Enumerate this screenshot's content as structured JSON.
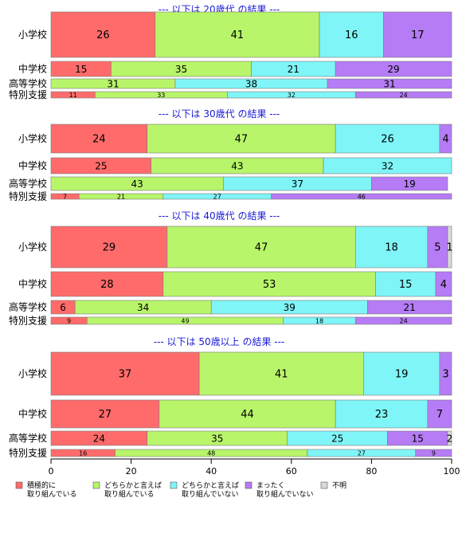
{
  "chart_data": {
    "type": "bar",
    "orientation": "horizontal",
    "stacked": true,
    "xlim": [
      0,
      100
    ],
    "x_ticks": [
      "0",
      "20",
      "40",
      "60",
      "80",
      "100"
    ],
    "column_headers": [
      "積極的に取り組んで..",
      "どちらかと言えば取り組んでいる",
      "どちらかと..",
      "まったく取り",
      "不明"
    ],
    "legend": {
      "placement": "bottom",
      "items": [
        {
          "lines": [
            "積極的に",
            "取り組んでいる"
          ],
          "color": "#ff6b6b"
        },
        {
          "lines": [
            "どちらかと言えば",
            "取り組んでいる"
          ],
          "color": "#b8f56a"
        },
        {
          "lines": [
            "どちらかと言えば",
            "取り組んでいない"
          ],
          "color": "#7ff5f7"
        },
        {
          "lines": [
            "まったく",
            "取り組んでいない"
          ],
          "color": "#b57cf5"
        },
        {
          "lines": [
            "不明"
          ],
          "color": "#d8d8d8"
        }
      ]
    },
    "groups": [
      {
        "title": "--- 以下は 20歳代 の結果 ---",
        "rows": [
          {
            "label": "小学校",
            "values": [
              26,
              41,
              16,
              17,
              0
            ],
            "labels": [
              "26",
              "41",
              "16",
              "17",
              ""
            ]
          },
          {
            "label": "中学校",
            "values": [
              15,
              35,
              21,
              29,
              0
            ],
            "labels": [
              "15",
              "35",
              "21",
              "29",
              ""
            ]
          },
          {
            "label": "高等学校",
            "values": [
              0,
              31,
              38,
              31,
              0
            ],
            "labels": [
              "",
              "31",
              "38",
              "31",
              ""
            ]
          },
          {
            "label": "特別支援",
            "values": [
              11,
              33,
              32,
              24,
              0
            ],
            "labels": [
              "11",
              "33",
              "32",
              "24",
              ""
            ]
          }
        ]
      },
      {
        "title": "--- 以下は 30歳代 の結果 ---",
        "rows": [
          {
            "label": "小学校",
            "values": [
              24,
              47,
              26,
              4,
              0
            ],
            "labels": [
              "24",
              "47",
              "26",
              "4",
              ""
            ]
          },
          {
            "label": "中学校",
            "values": [
              25,
              43,
              32,
              0,
              0
            ],
            "labels": [
              "25",
              "43",
              "32",
              "",
              ""
            ]
          },
          {
            "label": "高等学校",
            "values": [
              0,
              43,
              37,
              19,
              0
            ],
            "labels": [
              "",
              "43",
              "37",
              "19",
              ""
            ]
          },
          {
            "label": "特別支援",
            "values": [
              7,
              21,
              27,
              46,
              0
            ],
            "labels": [
              "7",
              "21",
              "27",
              "46",
              ""
            ]
          }
        ]
      },
      {
        "title": "--- 以下は 40歳代 の結果 ---",
        "rows": [
          {
            "label": "小学校",
            "values": [
              29,
              47,
              18,
              5,
              1
            ],
            "labels": [
              "29",
              "47",
              "18",
              "5",
              "1"
            ]
          },
          {
            "label": "中学校",
            "values": [
              28,
              53,
              15,
              4,
              0
            ],
            "labels": [
              "28",
              "53",
              "15",
              "4",
              ""
            ]
          },
          {
            "label": "高等学校",
            "values": [
              6,
              34,
              39,
              21,
              0
            ],
            "labels": [
              "6",
              "34",
              "39",
              "21",
              ""
            ]
          },
          {
            "label": "特別支援",
            "values": [
              9,
              49,
              18,
              24,
              0
            ],
            "labels": [
              "9",
              "49",
              "18",
              "24",
              ""
            ]
          }
        ]
      },
      {
        "title": "--- 以下は 50歳以上 の結果 ---",
        "rows": [
          {
            "label": "小学校",
            "values": [
              37,
              41,
              19,
              3,
              0
            ],
            "labels": [
              "37",
              "41",
              "19",
              "3",
              ""
            ]
          },
          {
            "label": "中学校",
            "values": [
              27,
              44,
              23,
              7,
              0
            ],
            "labels": [
              "27",
              "44",
              "23",
              "7",
              ""
            ]
          },
          {
            "label": "高等学校",
            "values": [
              24,
              35,
              25,
              15,
              2
            ],
            "labels": [
              "24",
              "35",
              "25",
              "15",
              "2"
            ]
          },
          {
            "label": "特別支援",
            "values": [
              16,
              48,
              27,
              9,
              0
            ],
            "labels": [
              "16",
              "48",
              "27",
              "9",
              ""
            ]
          }
        ]
      }
    ]
  }
}
